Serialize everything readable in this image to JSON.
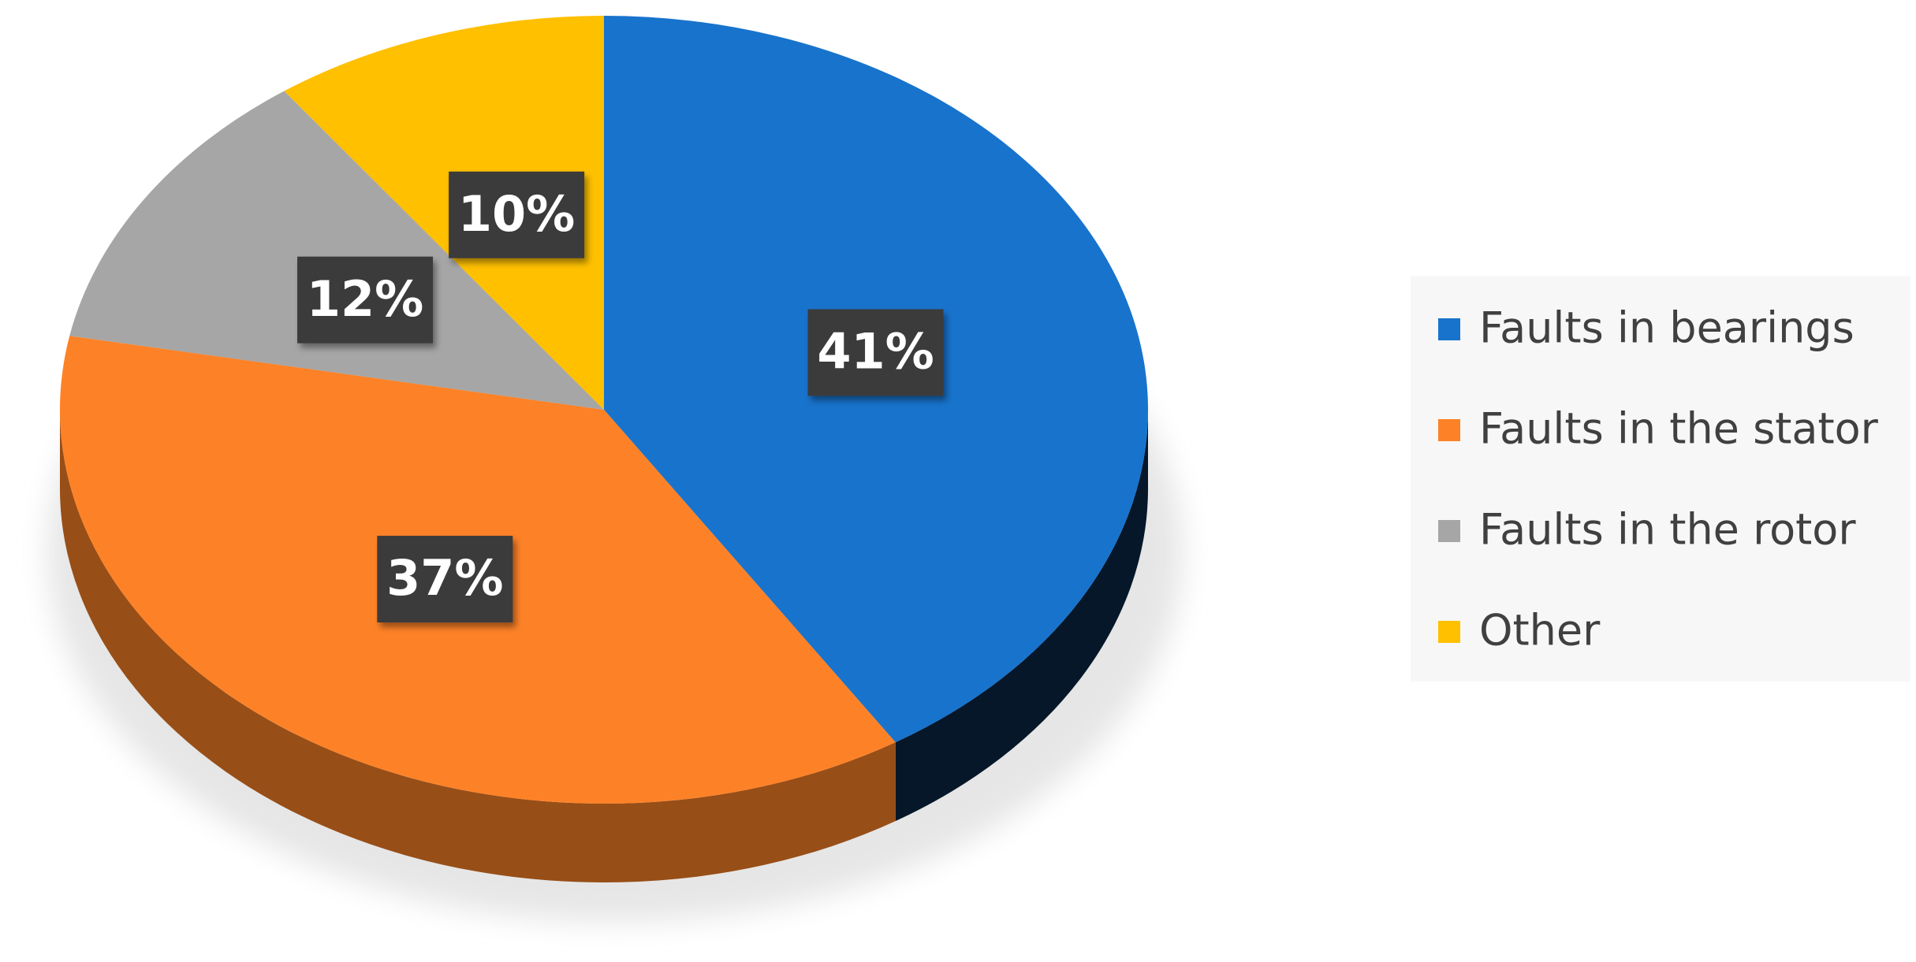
{
  "chart_data": {
    "type": "pie",
    "categories": [
      "Faults in bearings",
      "Faults in the stator",
      "Faults in the rotor",
      "Other"
    ],
    "values": [
      41,
      37,
      12,
      10
    ],
    "value_labels": [
      "41%",
      "37%",
      "12%",
      "10%"
    ],
    "colors": [
      "#1873cc",
      "#fd8227",
      "#a6a6a6",
      "#ffc000"
    ],
    "legend": "right"
  }
}
